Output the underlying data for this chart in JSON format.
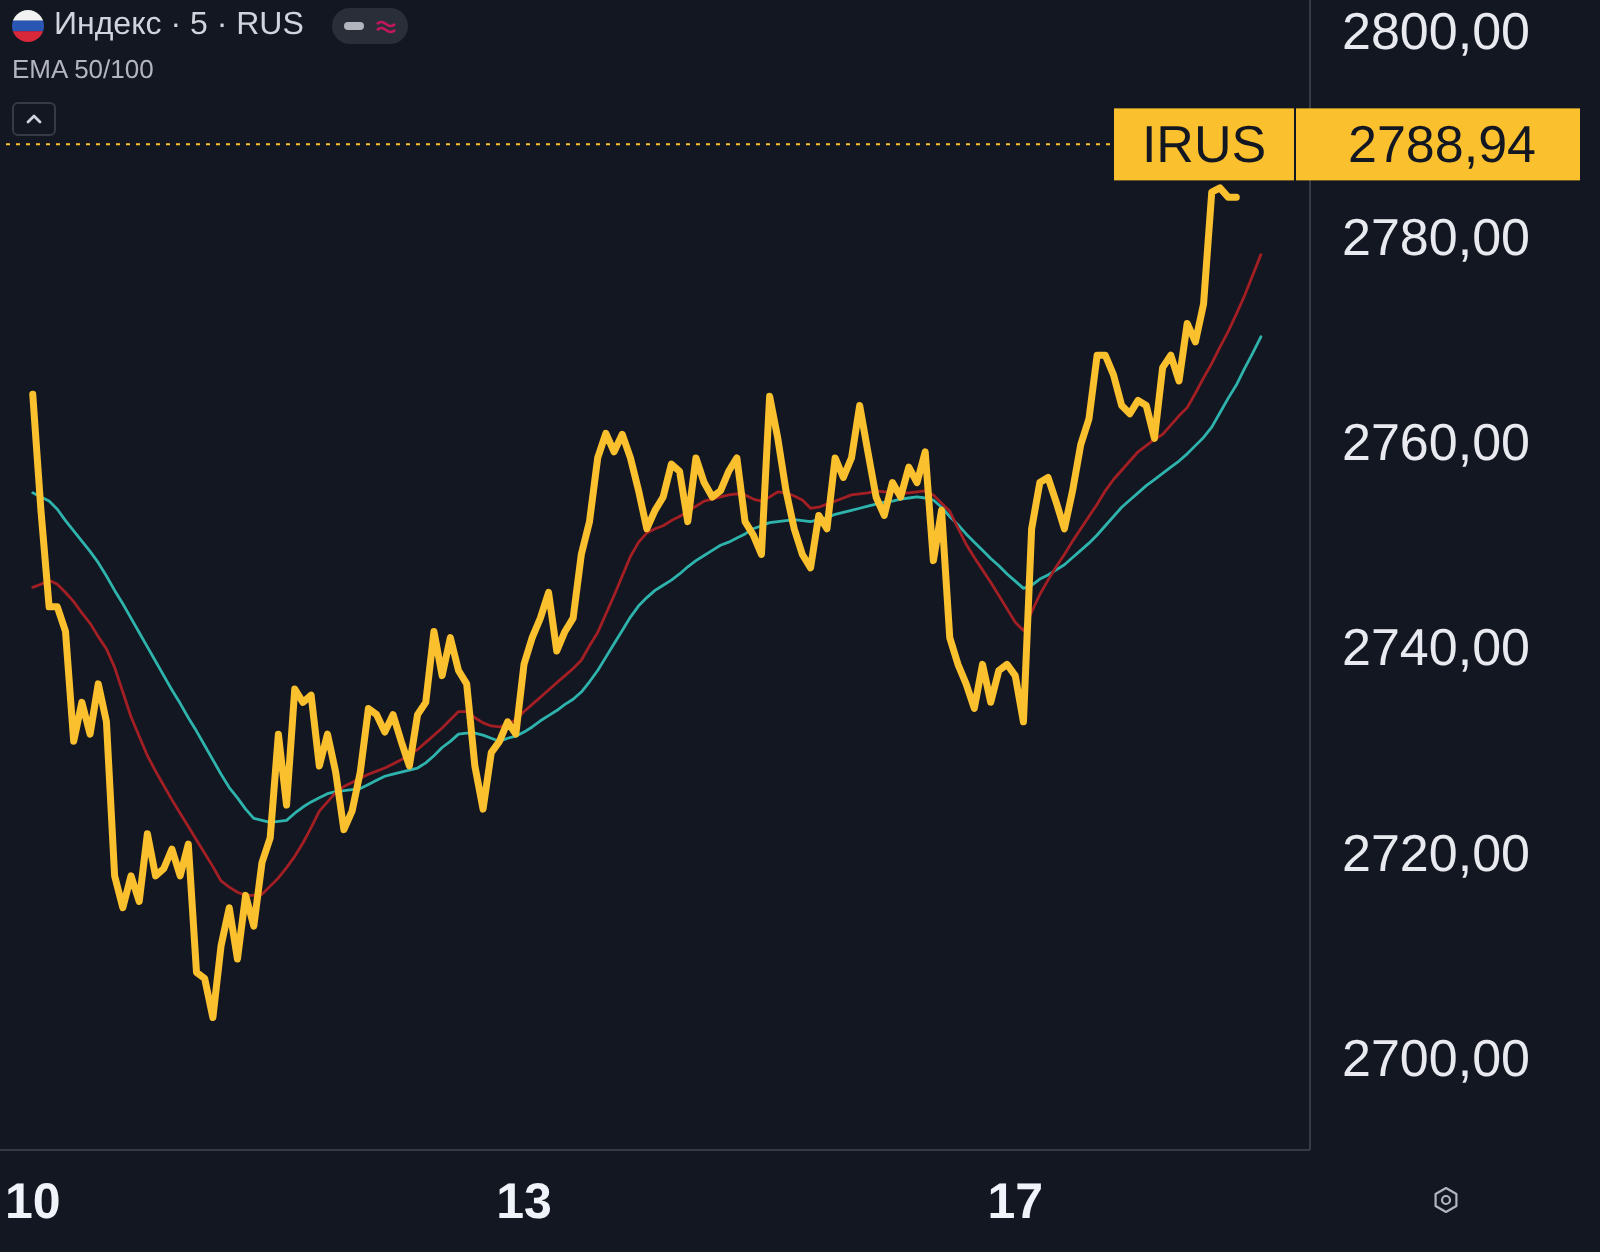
{
  "chart_data": {
    "type": "line",
    "title": "Индекс · 5 · RUS",
    "subtitle": "EMA 50/100",
    "categories": [
      "10",
      null,
      null,
      null,
      null,
      null,
      null,
      null,
      null,
      null,
      null,
      null,
      null,
      null,
      null,
      null,
      null,
      null,
      null,
      null,
      null,
      null,
      null,
      null,
      null,
      null,
      null,
      null,
      null,
      null,
      null,
      null,
      null,
      null,
      null,
      null,
      null,
      null,
      null,
      null,
      null,
      null,
      null,
      null,
      null,
      null,
      null,
      null,
      null,
      null,
      null,
      null,
      null,
      null,
      null,
      null,
      null,
      null,
      null,
      null,
      "13",
      null,
      null,
      null,
      null,
      null,
      null,
      null,
      null,
      null,
      null,
      null,
      null,
      null,
      null,
      null,
      null,
      null,
      null,
      null,
      null,
      null,
      null,
      null,
      null,
      null,
      null,
      null,
      null,
      null,
      null,
      null,
      null,
      null,
      null,
      null,
      null,
      null,
      null,
      null,
      null,
      null,
      null,
      null,
      null,
      null,
      null,
      null,
      null,
      null,
      null,
      null,
      null,
      null,
      null,
      null,
      null,
      null,
      null,
      null,
      "17",
      null,
      null,
      null,
      null,
      null,
      null,
      null,
      null,
      null,
      null,
      null,
      null,
      null,
      null,
      null,
      null,
      null,
      null,
      null,
      null,
      null,
      null,
      null,
      null,
      null,
      null,
      null,
      null,
      null,
      null
    ],
    "ylim": [
      2691,
      2803
    ],
    "yticks": [
      {
        "value": 2700,
        "label": "2700,00"
      },
      {
        "value": 2720,
        "label": "2720,00"
      },
      {
        "value": 2740,
        "label": "2740,00"
      },
      {
        "value": 2760,
        "label": "2760,00"
      },
      {
        "value": 2780,
        "label": "2780,00"
      },
      {
        "value": 2800,
        "label": "2800,00"
      }
    ],
    "ref_lines": [
      {
        "axis": "y",
        "value": 2788.94,
        "label": "IRUS",
        "color": "#fbc02d",
        "line_style": "dotted"
      }
    ],
    "annotations": [
      "2788,94"
    ],
    "series": [
      {
        "color": "#2eb3ad",
        "values": [
          2755.0,
          2754.6,
          2754.2,
          2753.4,
          2752.3,
          2751.3,
          2750.3,
          2749.3,
          2748.2,
          2746.9,
          2745.5,
          2744.2,
          2742.8,
          2741.4,
          2740.0,
          2738.6,
          2737.2,
          2735.8,
          2734.5,
          2733.1,
          2731.8,
          2730.4,
          2729.0,
          2727.6,
          2726.3,
          2725.3,
          2724.2,
          2723.3,
          2723.1,
          2722.9,
          2723.0,
          2723.1,
          2723.8,
          2724.4,
          2724.9,
          2725.3,
          2725.7,
          2725.9,
          2726.0,
          2726.1,
          2726.2,
          2726.6,
          2727.0,
          2727.4,
          2727.6,
          2727.8,
          2728.0,
          2728.2,
          2728.7,
          2729.4,
          2730.2,
          2730.8,
          2731.5,
          2731.6,
          2731.6,
          2731.4,
          2731.1,
          2730.8,
          2731.1,
          2731.3,
          2731.7,
          2732.2,
          2732.8,
          2733.3,
          2733.8,
          2734.4,
          2734.9,
          2735.6,
          2736.6,
          2737.7,
          2739.0,
          2740.3,
          2741.6,
          2742.9,
          2744.0,
          2744.8,
          2745.5,
          2746.0,
          2746.5,
          2747.1,
          2747.8,
          2748.4,
          2748.9,
          2749.4,
          2749.9,
          2750.2,
          2750.6,
          2751.0,
          2751.5,
          2751.8,
          2752.1,
          2752.2,
          2752.3,
          2752.4,
          2752.3,
          2752.2,
          2752.4,
          2752.6,
          2752.9,
          2753.1,
          2753.3,
          2753.5,
          2753.7,
          2753.9,
          2754.1,
          2754.2,
          2754.4,
          2754.5,
          2754.6,
          2754.5,
          2754.3,
          2753.6,
          2752.7,
          2751.9,
          2751.0,
          2750.2,
          2749.4,
          2748.6,
          2747.9,
          2747.1,
          2746.4,
          2745.7,
          2746.0,
          2746.6,
          2747.0,
          2747.5,
          2748.0,
          2748.7,
          2749.4,
          2750.1,
          2750.9,
          2751.8,
          2752.7,
          2753.6,
          2754.3,
          2755.0,
          2755.7,
          2756.3,
          2756.9,
          2757.5,
          2758.1,
          2758.8,
          2759.6,
          2760.4,
          2761.4,
          2762.8,
          2764.2,
          2765.5,
          2767.1,
          2768.6,
          2770.2
        ]
      },
      {
        "color": "#a31f24",
        "values": [
          2745.8,
          2746.1,
          2746.5,
          2746.1,
          2745.3,
          2744.4,
          2743.3,
          2742.3,
          2741.0,
          2739.8,
          2738.0,
          2735.6,
          2733.2,
          2731.3,
          2729.4,
          2727.9,
          2726.5,
          2725.1,
          2723.8,
          2722.5,
          2721.2,
          2719.9,
          2718.6,
          2717.2,
          2716.6,
          2716.1,
          2715.8,
          2715.8,
          2715.9,
          2716.7,
          2717.5,
          2718.5,
          2719.6,
          2720.9,
          2722.4,
          2724.0,
          2724.9,
          2725.8,
          2726.4,
          2726.8,
          2727.2,
          2727.6,
          2727.9,
          2728.2,
          2728.6,
          2729.0,
          2729.5,
          2730.0,
          2730.7,
          2731.4,
          2732.1,
          2732.9,
          2733.7,
          2733.7,
          2733.1,
          2732.6,
          2732.3,
          2732.2,
          2732.5,
          2732.9,
          2733.7,
          2734.4,
          2735.1,
          2735.8,
          2736.5,
          2737.2,
          2737.9,
          2738.7,
          2740.1,
          2741.4,
          2743.2,
          2745.0,
          2746.9,
          2748.8,
          2750.2,
          2751.1,
          2751.5,
          2751.8,
          2752.3,
          2752.7,
          2753.2,
          2753.7,
          2754.2,
          2754.4,
          2754.6,
          2754.8,
          2754.9,
          2754.8,
          2754.4,
          2754.2,
          2754.6,
          2755.1,
          2755.0,
          2754.7,
          2754.3,
          2753.5,
          2753.6,
          2753.9,
          2754.2,
          2754.5,
          2754.8,
          2754.9,
          2755.0,
          2755.2,
          2755.1,
          2755.1,
          2755.0,
          2755.0,
          2755.1,
          2755.2,
          2754.8,
          2754.0,
          2753.2,
          2751.6,
          2750.0,
          2748.7,
          2747.5,
          2746.3,
          2745.0,
          2743.7,
          2742.4,
          2741.6,
          2743.4,
          2745.1,
          2746.5,
          2747.8,
          2749.0,
          2750.3,
          2751.5,
          2752.7,
          2753.9,
          2755.2,
          2756.3,
          2757.2,
          2758.1,
          2759.0,
          2759.6,
          2760.2,
          2760.7,
          2761.6,
          2762.5,
          2763.3,
          2764.7,
          2766.2,
          2767.6,
          2769.2,
          2770.7,
          2772.4,
          2774.2,
          2776.2,
          2778.2
        ]
      },
      {
        "color": "#fbc02d",
        "values": [
          2764.6,
          2753.3,
          2743.9,
          2743.9,
          2741.5,
          2730.8,
          2734.6,
          2731.5,
          2736.4,
          2732.7,
          2717.7,
          2714.6,
          2717.7,
          2715.2,
          2721.8,
          2717.7,
          2718.4,
          2720.3,
          2717.7,
          2720.8,
          2708.3,
          2707.7,
          2703.9,
          2710.9,
          2714.6,
          2709.6,
          2715.8,
          2712.8,
          2719.0,
          2721.4,
          2731.5,
          2724.6,
          2735.9,
          2734.6,
          2735.3,
          2728.4,
          2731.5,
          2727.8,
          2722.2,
          2724.0,
          2727.8,
          2734.0,
          2733.4,
          2731.7,
          2733.4,
          2730.8,
          2728.4,
          2733.4,
          2734.6,
          2741.5,
          2737.2,
          2740.9,
          2737.7,
          2736.4,
          2728.4,
          2724.2,
          2729.7,
          2730.8,
          2732.7,
          2731.5,
          2738.3,
          2740.9,
          2742.8,
          2745.3,
          2739.6,
          2741.5,
          2742.8,
          2749.0,
          2752.2,
          2758.4,
          2760.8,
          2759.0,
          2760.7,
          2758.4,
          2755.2,
          2751.5,
          2753.3,
          2754.6,
          2757.8,
          2757.1,
          2752.2,
          2758.4,
          2756.0,
          2754.6,
          2755.2,
          2757.1,
          2758.4,
          2752.2,
          2750.9,
          2749.0,
          2764.4,
          2760.3,
          2755.2,
          2751.5,
          2749.0,
          2747.7,
          2752.8,
          2751.5,
          2758.4,
          2756.5,
          2758.4,
          2763.5,
          2759.0,
          2754.6,
          2752.8,
          2756.0,
          2754.6,
          2757.5,
          2756.0,
          2759.0,
          2748.4,
          2753.3,
          2740.9,
          2738.3,
          2736.4,
          2734.0,
          2738.3,
          2734.6,
          2737.7,
          2738.3,
          2737.2,
          2732.7,
          2751.5,
          2756.0,
          2756.5,
          2754.1,
          2751.5,
          2755.2,
          2759.7,
          2762.2,
          2768.4,
          2768.4,
          2766.5,
          2763.5,
          2762.7,
          2764.0,
          2763.5,
          2760.3,
          2767.2,
          2768.4,
          2765.9,
          2771.5,
          2769.7,
          2773.4,
          2784.3,
          2784.7,
          2783.8,
          2783.8,
          null,
          null,
          null
        ]
      }
    ]
  }
}
